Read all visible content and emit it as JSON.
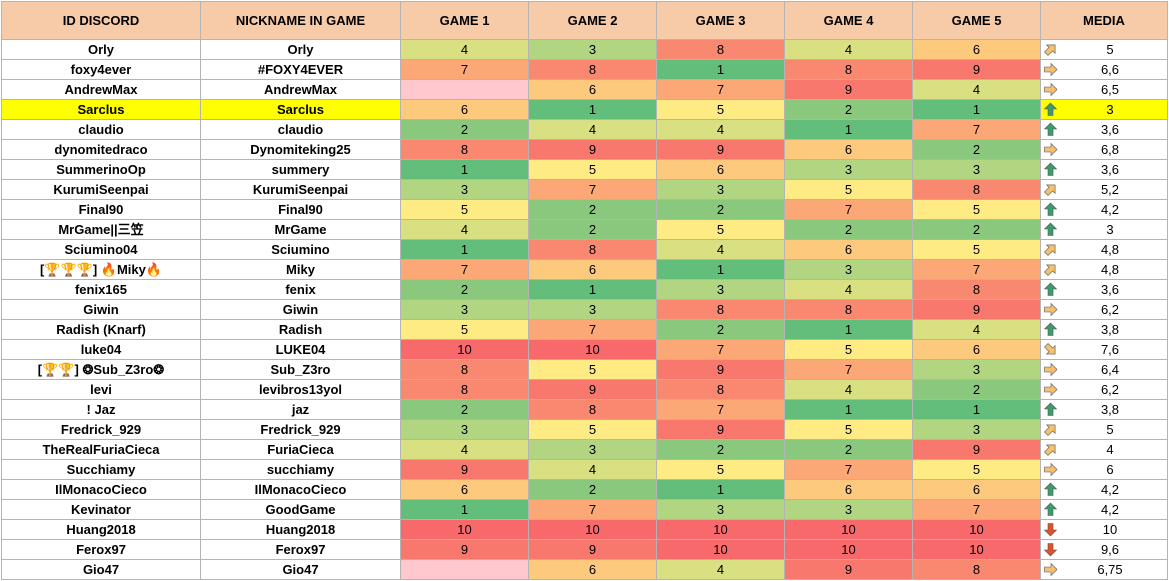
{
  "headers": [
    "ID DISCORD",
    "NICKNAME IN GAME",
    "GAME 1",
    "GAME 2",
    "GAME 3",
    "GAME 4",
    "GAME 5",
    "MEDIA"
  ],
  "highlight_row": 3,
  "colors": {
    "1": "#63be7b",
    "2": "#8ac97d",
    "3": "#b1d580",
    "4": "#d8e082",
    "5": "#ffeb84",
    "6": "#fdc97d",
    "7": "#fba776",
    "8": "#f98870",
    "9": "#f8786d",
    "10": "#f8696b",
    "empty": "#ffc7ce"
  },
  "rows": [
    {
      "discord": "Orly",
      "nick": "Orly",
      "games": [
        "4",
        "3",
        "8",
        "4",
        "6"
      ],
      "media": "5",
      "trend": "up-right"
    },
    {
      "discord": "foxy4ever",
      "nick": "#FOXY4EVER",
      "games": [
        "7",
        "8",
        "1",
        "8",
        "9"
      ],
      "media": "6,6",
      "trend": "right"
    },
    {
      "discord": "AndrewMax",
      "nick": "AndrewMax",
      "games": [
        "",
        "6",
        "7",
        "9",
        "4"
      ],
      "media": "6,5",
      "trend": "right"
    },
    {
      "discord": "Sarclus",
      "nick": "Sarclus",
      "games": [
        "6",
        "1",
        "5",
        "2",
        "1"
      ],
      "media": "3",
      "trend": "up"
    },
    {
      "discord": "claudio",
      "nick": "claudio",
      "games": [
        "2",
        "4",
        "4",
        "1",
        "7"
      ],
      "media": "3,6",
      "trend": "up"
    },
    {
      "discord": "dynomitedraco",
      "nick": "Dynomiteking25",
      "games": [
        "8",
        "9",
        "9",
        "6",
        "2"
      ],
      "media": "6,8",
      "trend": "right"
    },
    {
      "discord": "SummerinoOp",
      "nick": "summery",
      "games": [
        "1",
        "5",
        "6",
        "3",
        "3"
      ],
      "media": "3,6",
      "trend": "up"
    },
    {
      "discord": "KurumiSeenpai",
      "nick": "KurumiSeenpai",
      "games": [
        "3",
        "7",
        "3",
        "5",
        "8"
      ],
      "media": "5,2",
      "trend": "up-right"
    },
    {
      "discord": "Final90",
      "nick": "Final90",
      "games": [
        "5",
        "2",
        "2",
        "7",
        "5"
      ],
      "media": "4,2",
      "trend": "up"
    },
    {
      "discord": "MrGame||三笠",
      "nick": "MrGame",
      "games": [
        "4",
        "2",
        "5",
        "2",
        "2"
      ],
      "media": "3",
      "trend": "up"
    },
    {
      "discord": "Sciumino04",
      "nick": "Sciumino",
      "games": [
        "1",
        "8",
        "4",
        "6",
        "5"
      ],
      "media": "4,8",
      "trend": "up-right"
    },
    {
      "discord": "[🏆🏆🏆] 🔥Miky🔥",
      "nick": "Miky",
      "games": [
        "7",
        "6",
        "1",
        "3",
        "7"
      ],
      "media": "4,8",
      "trend": "up-right"
    },
    {
      "discord": "fenix165",
      "nick": "fenix",
      "games": [
        "2",
        "1",
        "3",
        "4",
        "8"
      ],
      "media": "3,6",
      "trend": "up"
    },
    {
      "discord": "Giwin",
      "nick": "Giwin",
      "games": [
        "3",
        "3",
        "8",
        "8",
        "9"
      ],
      "media": "6,2",
      "trend": "right"
    },
    {
      "discord": "Radish (Knarf)",
      "nick": "Radish",
      "games": [
        "5",
        "7",
        "2",
        "1",
        "4"
      ],
      "media": "3,8",
      "trend": "up"
    },
    {
      "discord": "luke04",
      "nick": "LUKE04",
      "games": [
        "10",
        "10",
        "7",
        "5",
        "6"
      ],
      "media": "7,6",
      "trend": "down-right"
    },
    {
      "discord": "[🏆🏆] ❂Sub_Z3ro❂",
      "nick": "Sub_Z3ro",
      "games": [
        "8",
        "5",
        "9",
        "7",
        "3"
      ],
      "media": "6,4",
      "trend": "right"
    },
    {
      "discord": "levi",
      "nick": "levibros13yol",
      "games": [
        "8",
        "9",
        "8",
        "4",
        "2"
      ],
      "media": "6,2",
      "trend": "right"
    },
    {
      "discord": "! Jaz",
      "nick": "jaz",
      "games": [
        "2",
        "8",
        "7",
        "1",
        "1"
      ],
      "media": "3,8",
      "trend": "up"
    },
    {
      "discord": "Fredrick_929",
      "nick": "Fredrick_929",
      "games": [
        "3",
        "5",
        "9",
        "5",
        "3"
      ],
      "media": "5",
      "trend": "up-right"
    },
    {
      "discord": "TheRealFuriaCieca",
      "nick": "FuriaCieca",
      "games": [
        "4",
        "3",
        "2",
        "2",
        "9"
      ],
      "media": "4",
      "trend": "up-right"
    },
    {
      "discord": "Succhiamy",
      "nick": "succhiamy",
      "games": [
        "9",
        "4",
        "5",
        "7",
        "5"
      ],
      "media": "6",
      "trend": "right"
    },
    {
      "discord": "IlMonacoCieco",
      "nick": "IlMonacoCieco",
      "games": [
        "6",
        "2",
        "1",
        "6",
        "6"
      ],
      "media": "4,2",
      "trend": "up"
    },
    {
      "discord": "Kevinator",
      "nick": "GoodGame",
      "games": [
        "1",
        "7",
        "3",
        "3",
        "7"
      ],
      "media": "4,2",
      "trend": "up"
    },
    {
      "discord": "Huang2018",
      "nick": "Huang2018",
      "games": [
        "10",
        "10",
        "10",
        "10",
        "10"
      ],
      "media": "10",
      "trend": "down"
    },
    {
      "discord": "Ferox97",
      "nick": "Ferox97",
      "games": [
        "9",
        "9",
        "10",
        "10",
        "10"
      ],
      "media": "9,6",
      "trend": "down"
    },
    {
      "discord": "Gio47",
      "nick": "Gio47",
      "games": [
        "",
        "6",
        "4",
        "9",
        "8"
      ],
      "media": "6,75",
      "trend": "right"
    }
  ]
}
